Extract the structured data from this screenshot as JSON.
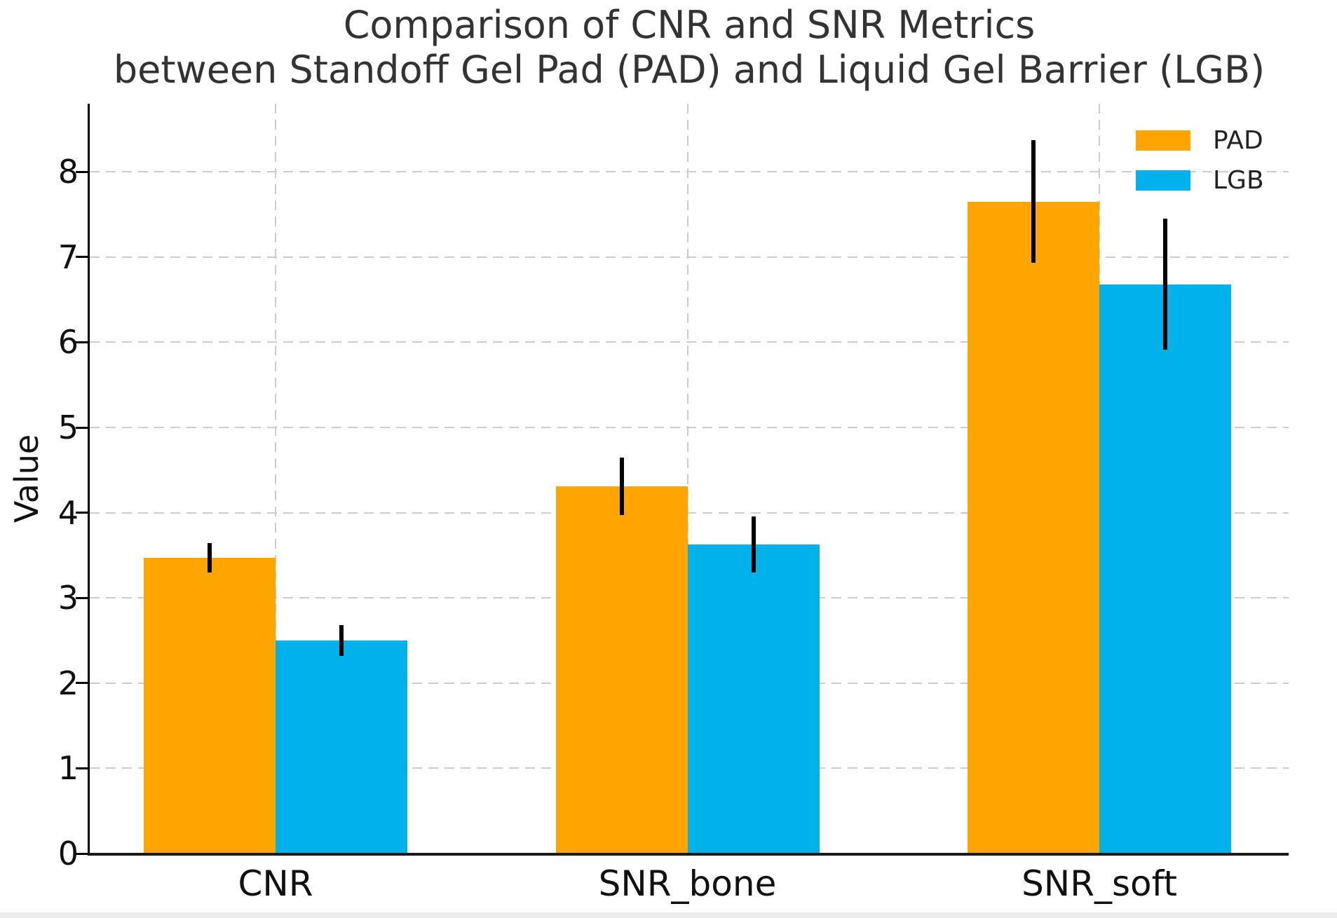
{
  "chart_data": {
    "type": "bar",
    "title_line1": "Comparison of CNR and SNR Metrics",
    "title_line2": "between Standoff Gel Pad (PAD) and Liquid Gel Barrier (LGB)",
    "ylabel": "Value",
    "xlabel": "",
    "categories": [
      "CNR",
      "SNR_bone",
      "SNR_soft"
    ],
    "series": [
      {
        "name": "PAD",
        "color": "#FFA502",
        "values": [
          3.47,
          4.31,
          7.65
        ],
        "errors": [
          0.17,
          0.34,
          0.72
        ]
      },
      {
        "name": "LGB",
        "color": "#00B1EA",
        "values": [
          2.5,
          3.63,
          6.68
        ],
        "errors": [
          0.18,
          0.33,
          0.77
        ]
      }
    ],
    "yticks": [
      0,
      1,
      2,
      3,
      4,
      5,
      6,
      7,
      8
    ],
    "ylim": [
      0,
      8.8
    ],
    "grid": "dashed horizontal lines at integer y values and dashed vertical lines at category centers",
    "legend_position": "upper right",
    "error_bar_color": "#000000",
    "axis_color": "#000000",
    "grid_color": "#cdcdcd",
    "title_color": "#333333"
  }
}
